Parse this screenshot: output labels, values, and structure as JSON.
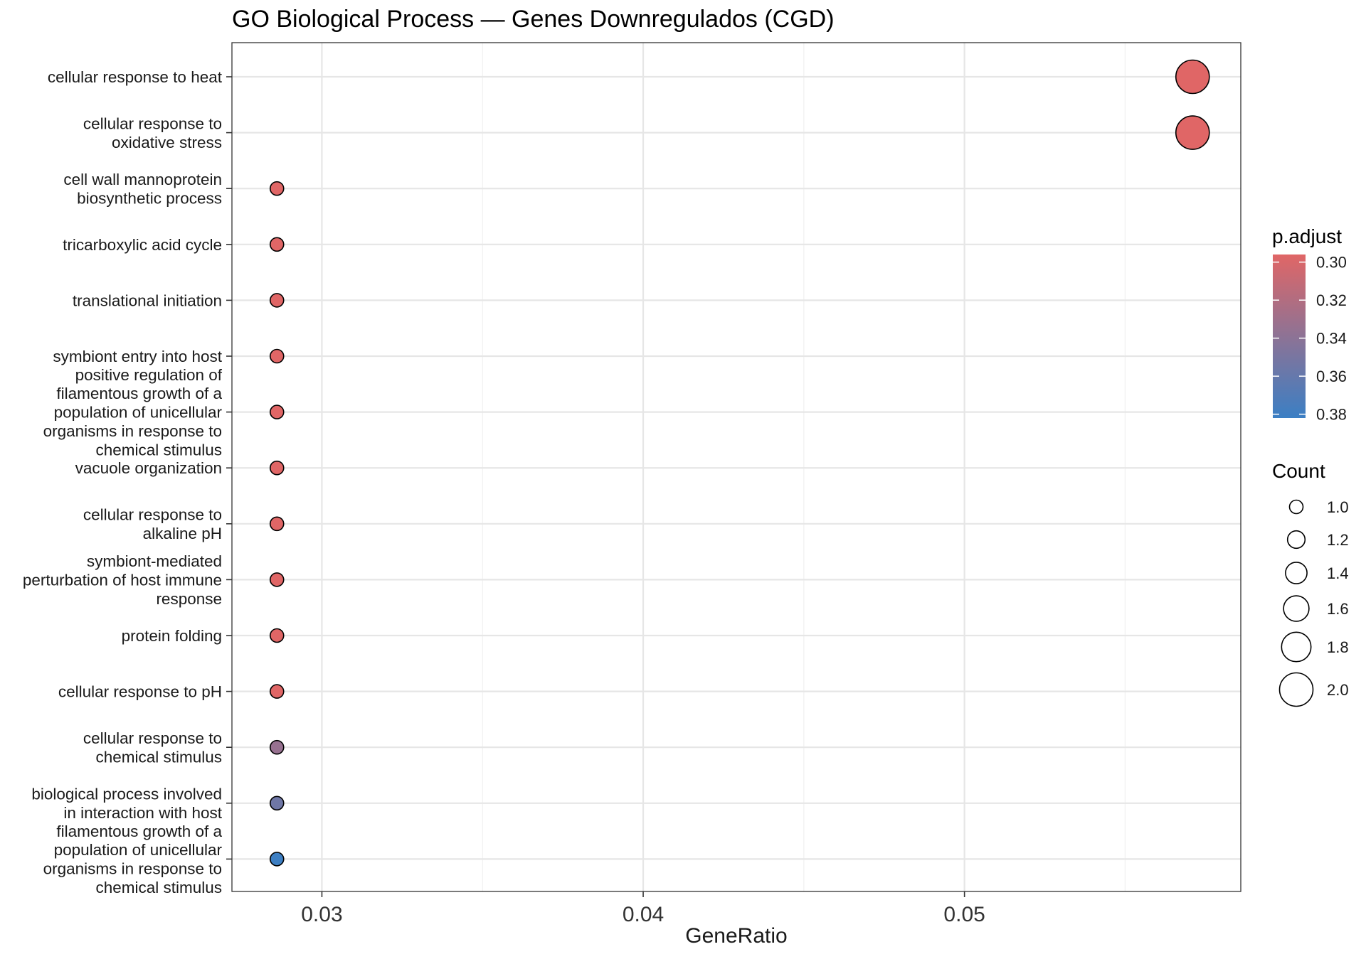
{
  "chart_data": {
    "type": "scatter",
    "title": "GO Biological Process — Genes Downregulados (CGD)",
    "xlabel": "GeneRatio",
    "ylabel": "",
    "xlim": [
      0.0272,
      0.0586
    ],
    "x_ticks": [
      0.03,
      0.04,
      0.05
    ],
    "x_tick_labels": [
      "0.03",
      "0.04",
      "0.05"
    ],
    "grid": true,
    "legend_position": "right",
    "categories": [
      "cellular response to heat",
      "cellular response to oxidative stress",
      "cell wall mannoprotein biosynthetic process",
      "tricarboxylic acid cycle",
      "translational initiation",
      "symbiont entry into host",
      "positive regulation of filamentous growth of a population of unicellular organisms in response to chemical stimulus",
      "vacuole organization",
      "cellular response to alkaline pH",
      "symbiont-mediated perturbation of host immune response",
      "protein folding",
      "cellular response to pH",
      "cellular response to chemical stimulus",
      "biological process involved in interaction with host",
      "filamentous growth of a population of unicellular organisms in response to chemical stimulus"
    ],
    "category_labels": [
      [
        "cellular response to heat"
      ],
      [
        "cellular response to",
        "oxidative stress"
      ],
      [
        "cell wall mannoprotein",
        "biosynthetic process"
      ],
      [
        "tricarboxylic acid cycle"
      ],
      [
        "translational initiation"
      ],
      [
        "symbiont entry into host"
      ],
      [
        "positive regulation of",
        "filamentous growth of a",
        "population of unicellular",
        "organisms in response to",
        "chemical stimulus"
      ],
      [
        "vacuole organization"
      ],
      [
        "cellular response to",
        "alkaline pH"
      ],
      [
        "symbiont-mediated",
        "perturbation of host immune",
        "response"
      ],
      [
        "protein folding"
      ],
      [
        "cellular response to pH"
      ],
      [
        "cellular response to",
        "chemical stimulus"
      ],
      [
        "biological process involved",
        "in interaction with host"
      ],
      [
        "filamentous growth of a",
        "population of unicellular",
        "organisms in response to",
        "chemical stimulus"
      ]
    ],
    "points": [
      {
        "term": "cellular response to heat",
        "gene_ratio": 0.0571,
        "count": 2,
        "p_adjust": 0.296
      },
      {
        "term": "cellular response to oxidative stress",
        "gene_ratio": 0.0571,
        "count": 2,
        "p_adjust": 0.296
      },
      {
        "term": "cell wall mannoprotein biosynthetic process",
        "gene_ratio": 0.0286,
        "count": 1,
        "p_adjust": 0.296
      },
      {
        "term": "tricarboxylic acid cycle",
        "gene_ratio": 0.0286,
        "count": 1,
        "p_adjust": 0.296
      },
      {
        "term": "translational initiation",
        "gene_ratio": 0.0286,
        "count": 1,
        "p_adjust": 0.296
      },
      {
        "term": "symbiont entry into host",
        "gene_ratio": 0.0286,
        "count": 1,
        "p_adjust": 0.296
      },
      {
        "term": "positive regulation of filamentous growth of a population of unicellular organisms in response to chemical stimulus",
        "gene_ratio": 0.0286,
        "count": 1,
        "p_adjust": 0.296
      },
      {
        "term": "vacuole organization",
        "gene_ratio": 0.0286,
        "count": 1,
        "p_adjust": 0.296
      },
      {
        "term": "cellular response to alkaline pH",
        "gene_ratio": 0.0286,
        "count": 1,
        "p_adjust": 0.296
      },
      {
        "term": "symbiont-mediated perturbation of host immune response",
        "gene_ratio": 0.0286,
        "count": 1,
        "p_adjust": 0.296
      },
      {
        "term": "protein folding",
        "gene_ratio": 0.0286,
        "count": 1,
        "p_adjust": 0.296
      },
      {
        "term": "cellular response to pH",
        "gene_ratio": 0.0286,
        "count": 1,
        "p_adjust": 0.296
      },
      {
        "term": "cellular response to chemical stimulus",
        "gene_ratio": 0.0286,
        "count": 1,
        "p_adjust": 0.334
      },
      {
        "term": "biological process involved in interaction with host",
        "gene_ratio": 0.0286,
        "count": 1,
        "p_adjust": 0.355
      },
      {
        "term": "filamentous growth of a population of unicellular organisms in response to chemical stimulus",
        "gene_ratio": 0.0286,
        "count": 1,
        "p_adjust": 0.381
      }
    ],
    "color_legend": {
      "title": "p.adjust",
      "range": [
        0.296,
        0.382
      ],
      "low_color": "#E06666",
      "high_color": "#3B7FC4",
      "ticks": [
        0.3,
        0.32,
        0.34,
        0.36,
        0.38
      ],
      "tick_labels": [
        "0.30",
        "0.32",
        "0.34",
        "0.36",
        "0.38"
      ]
    },
    "size_legend": {
      "title": "Count",
      "values": [
        1.0,
        1.2,
        1.4,
        1.6,
        1.8,
        2.0
      ],
      "labels": [
        "1.0",
        "1.2",
        "1.4",
        "1.6",
        "1.8",
        "2.0"
      ]
    }
  }
}
